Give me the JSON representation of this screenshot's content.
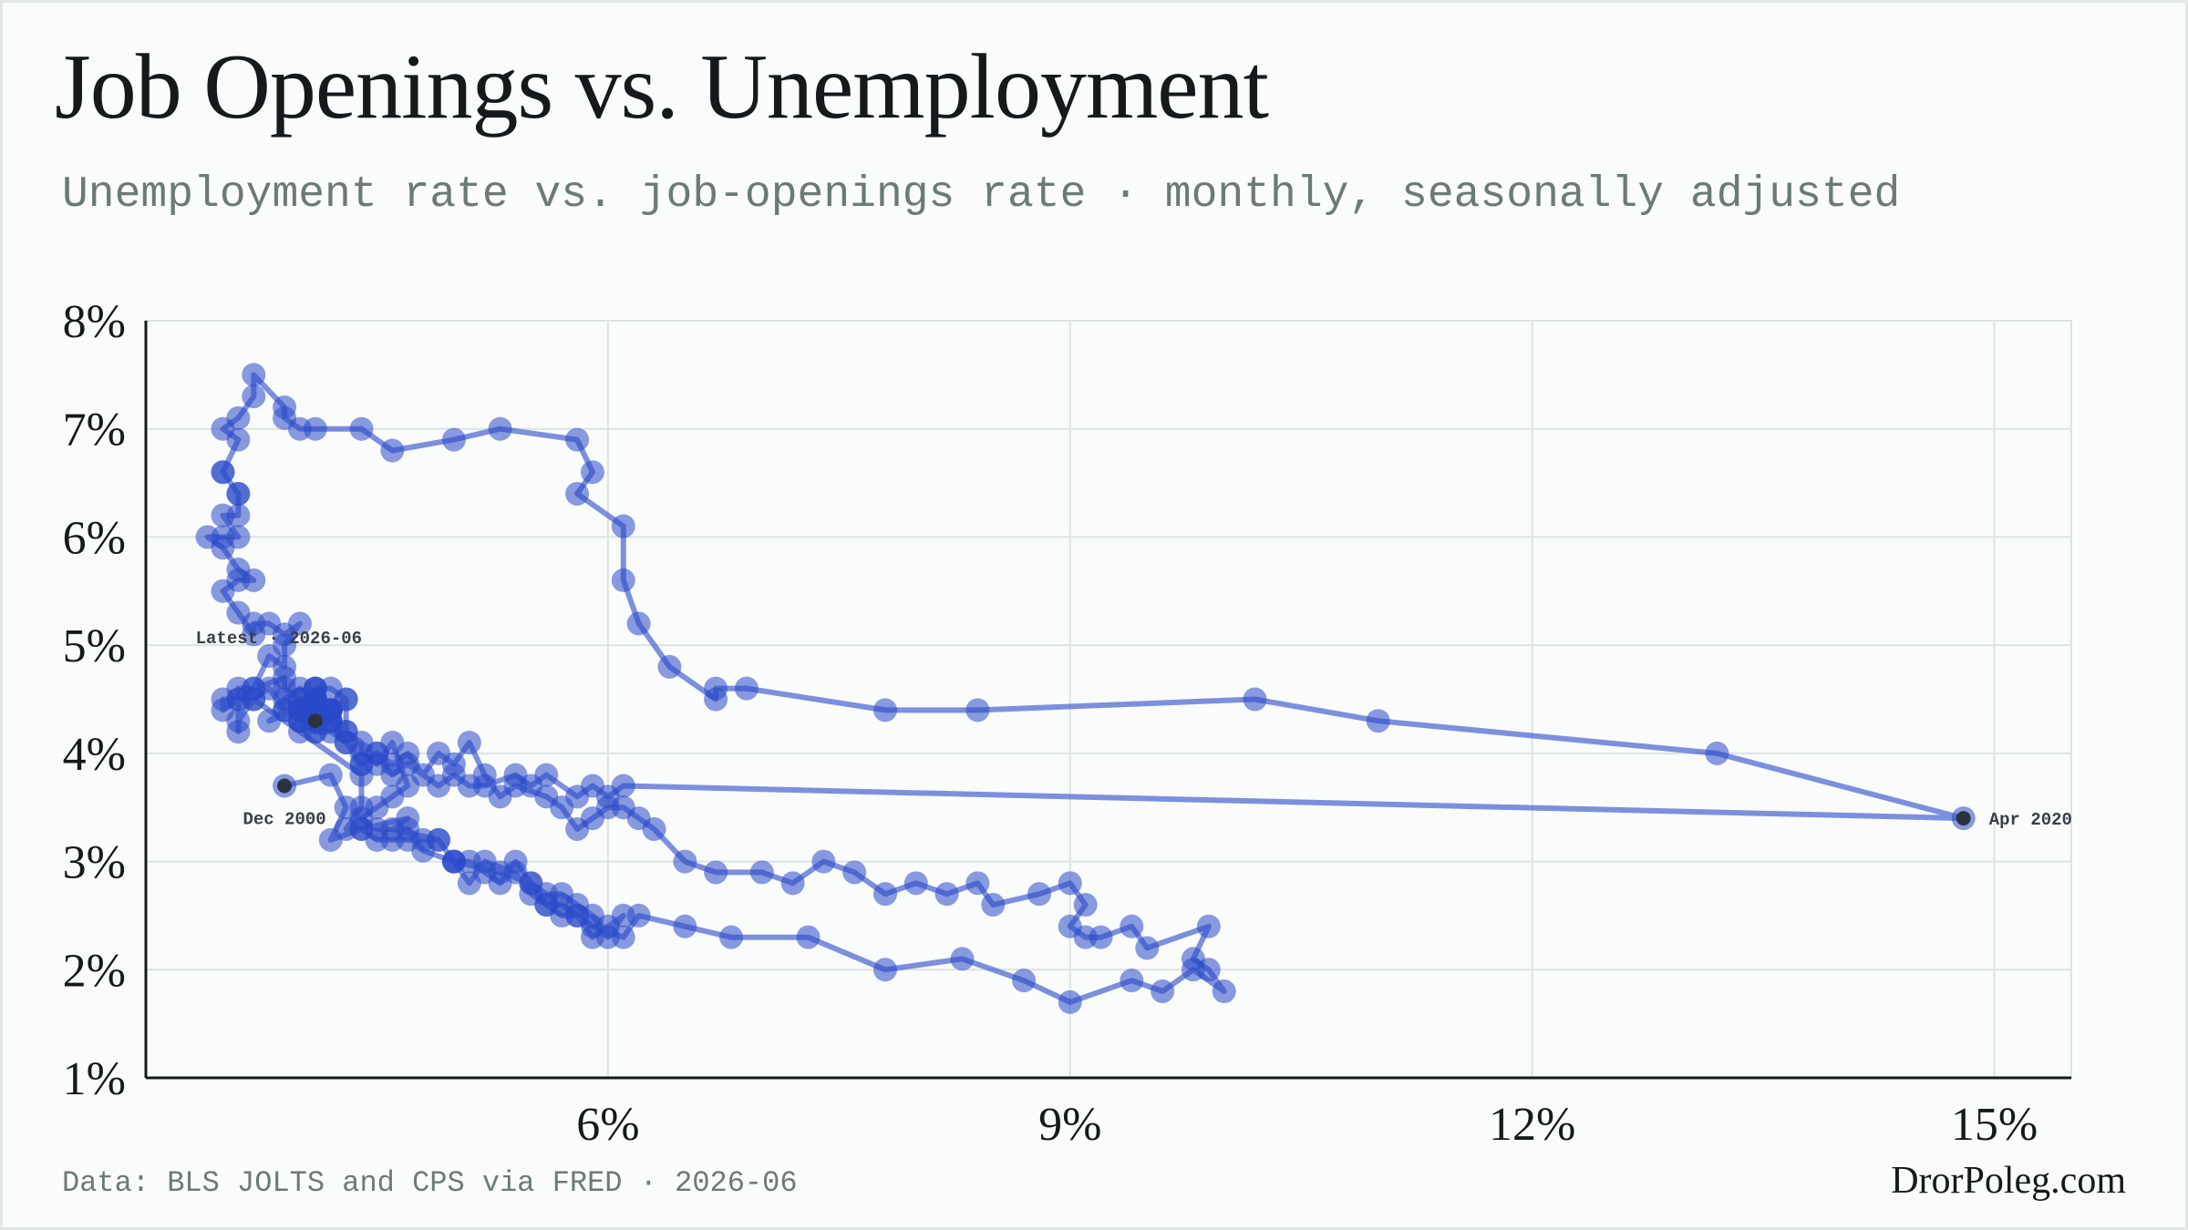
{
  "title": "Job Openings vs. Unemployment",
  "subtitle": "Unemployment rate vs. job-openings rate · monthly, seasonally adjusted",
  "footer": {
    "source": "Data: BLS JOLTS and CPS via FRED · 2026-06",
    "brand": "DrorPoleg.com"
  },
  "colors": {
    "series": "#2a48c8",
    "grid": "#dde2e2",
    "axis": "#16191c",
    "endpoint": "#2b3340"
  },
  "chart_data": {
    "type": "scatter",
    "connected": true,
    "title": "Job Openings vs. Unemployment",
    "xlabel": "",
    "ylabel": "",
    "xlim": [
      3.0,
      15.5
    ],
    "ylim": [
      1,
      8
    ],
    "x_ticks": [
      {
        "value": 6,
        "label": "6%"
      },
      {
        "value": 9,
        "label": "9%"
      },
      {
        "value": 12,
        "label": "12%"
      },
      {
        "value": 15,
        "label": "15%"
      }
    ],
    "y_ticks": [
      {
        "value": 1,
        "label": "1%"
      },
      {
        "value": 2,
        "label": "2%"
      },
      {
        "value": 3,
        "label": "3%"
      },
      {
        "value": 4,
        "label": "4%"
      },
      {
        "value": 5,
        "label": "5%"
      },
      {
        "value": 6,
        "label": "6%"
      },
      {
        "value": 7,
        "label": "7%"
      },
      {
        "value": 8,
        "label": "8%"
      }
    ],
    "grid": true,
    "series": [
      {
        "points": [
          [
            3.9,
            3.7
          ],
          [
            4.2,
            3.8
          ],
          [
            4.3,
            3.5
          ],
          [
            4.2,
            3.2
          ],
          [
            4.4,
            3.3
          ],
          [
            4.7,
            3.4
          ],
          [
            4.6,
            3.3
          ],
          [
            4.9,
            3.2
          ],
          [
            5.0,
            3.0
          ],
          [
            5.3,
            2.9
          ],
          [
            5.5,
            2.8
          ],
          [
            5.6,
            2.6
          ],
          [
            5.7,
            2.6
          ],
          [
            5.8,
            2.5
          ],
          [
            5.9,
            2.4
          ],
          [
            6.1,
            2.3
          ],
          [
            6.2,
            2.5
          ],
          [
            6.5,
            2.4
          ],
          [
            6.8,
            2.3
          ],
          [
            7.3,
            2.3
          ],
          [
            7.8,
            2.0
          ],
          [
            8.3,
            2.1
          ],
          [
            8.7,
            1.9
          ],
          [
            9.0,
            1.7
          ],
          [
            9.4,
            1.9
          ],
          [
            9.6,
            1.8
          ],
          [
            9.8,
            2.0
          ],
          [
            10.0,
            1.8
          ],
          [
            9.9,
            2.0
          ],
          [
            9.8,
            2.1
          ],
          [
            9.9,
            2.4
          ],
          [
            9.5,
            2.2
          ],
          [
            9.4,
            2.4
          ],
          [
            9.2,
            2.3
          ],
          [
            9.1,
            2.3
          ],
          [
            9.0,
            2.4
          ],
          [
            9.1,
            2.6
          ],
          [
            9.0,
            2.8
          ],
          [
            8.8,
            2.7
          ],
          [
            8.5,
            2.6
          ],
          [
            8.4,
            2.8
          ],
          [
            8.2,
            2.7
          ],
          [
            8.0,
            2.8
          ],
          [
            7.8,
            2.7
          ],
          [
            7.6,
            2.9
          ],
          [
            7.4,
            3.0
          ],
          [
            7.2,
            2.8
          ],
          [
            7.0,
            2.9
          ],
          [
            6.7,
            2.9
          ],
          [
            6.5,
            3.0
          ],
          [
            6.3,
            3.3
          ],
          [
            6.2,
            3.4
          ],
          [
            6.1,
            3.5
          ],
          [
            6.0,
            3.5
          ],
          [
            5.9,
            3.4
          ],
          [
            5.8,
            3.3
          ],
          [
            5.7,
            3.5
          ],
          [
            5.6,
            3.6
          ],
          [
            5.4,
            3.7
          ],
          [
            5.3,
            3.6
          ],
          [
            5.2,
            3.8
          ],
          [
            5.1,
            4.1
          ],
          [
            5.0,
            3.9
          ],
          [
            4.9,
            4.0
          ],
          [
            4.8,
            3.8
          ],
          [
            4.7,
            4.0
          ],
          [
            4.6,
            3.9
          ],
          [
            4.5,
            4.0
          ],
          [
            4.4,
            3.9
          ],
          [
            4.3,
            4.1
          ],
          [
            4.2,
            4.3
          ],
          [
            4.1,
            4.2
          ],
          [
            4.0,
            4.3
          ],
          [
            3.9,
            4.4
          ],
          [
            3.8,
            4.6
          ],
          [
            3.7,
            4.5
          ],
          [
            3.6,
            4.5
          ],
          [
            3.5,
            4.4
          ],
          [
            3.5,
            4.5
          ],
          [
            3.6,
            4.5
          ],
          [
            3.7,
            4.6
          ],
          [
            3.9,
            4.7
          ],
          [
            3.9,
            4.6
          ],
          [
            4.0,
            4.5
          ],
          [
            4.1,
            4.5
          ],
          [
            4.0,
            4.4
          ],
          [
            4.1,
            4.6
          ],
          [
            4.2,
            4.4
          ],
          [
            4.0,
            4.4
          ],
          [
            4.1,
            4.3
          ],
          [
            4.2,
            4.4
          ],
          [
            4.0,
            4.2
          ],
          [
            4.1,
            4.4
          ],
          [
            4.2,
            4.3
          ],
          [
            4.3,
            4.2
          ],
          [
            4.4,
            4.1
          ],
          [
            4.4,
            4.0
          ],
          [
            4.5,
            3.9
          ],
          [
            4.6,
            4.1
          ],
          [
            4.7,
            3.7
          ],
          [
            4.6,
            3.6
          ],
          [
            4.5,
            3.5
          ],
          [
            4.4,
            3.4
          ],
          [
            4.5,
            3.3
          ],
          [
            4.7,
            3.3
          ],
          [
            4.8,
            3.1
          ],
          [
            5.0,
            3.0
          ],
          [
            5.1,
            2.8
          ],
          [
            5.2,
            3.0
          ],
          [
            5.4,
            2.9
          ],
          [
            5.5,
            2.7
          ],
          [
            5.6,
            2.6
          ],
          [
            5.7,
            2.5
          ],
          [
            5.8,
            2.5
          ],
          [
            5.9,
            2.3
          ],
          [
            6.0,
            2.4
          ],
          [
            6.1,
            2.5
          ],
          [
            6.0,
            2.3
          ],
          [
            5.9,
            2.5
          ],
          [
            5.8,
            2.6
          ],
          [
            5.7,
            2.7
          ],
          [
            5.6,
            2.7
          ],
          [
            5.5,
            2.8
          ],
          [
            5.4,
            3.0
          ],
          [
            5.3,
            2.8
          ],
          [
            5.2,
            2.9
          ],
          [
            5.1,
            3.0
          ],
          [
            5.0,
            3.0
          ],
          [
            4.9,
            3.2
          ],
          [
            4.8,
            3.2
          ],
          [
            4.7,
            3.2
          ],
          [
            4.6,
            3.2
          ],
          [
            4.5,
            3.2
          ],
          [
            4.4,
            3.3
          ],
          [
            4.3,
            3.3
          ],
          [
            4.4,
            3.5
          ],
          [
            4.4,
            3.8
          ],
          [
            3.7,
            4.5
          ],
          [
            3.6,
            4.3
          ],
          [
            3.6,
            4.2
          ],
          [
            3.6,
            4.6
          ],
          [
            3.7,
            4.6
          ],
          [
            3.8,
            4.9
          ],
          [
            3.9,
            4.8
          ],
          [
            3.9,
            5.0
          ],
          [
            4.0,
            5.2
          ],
          [
            3.9,
            5.1
          ],
          [
            3.8,
            5.2
          ],
          [
            3.7,
            5.2
          ],
          [
            3.7,
            5.1
          ],
          [
            3.6,
            5.3
          ],
          [
            3.5,
            5.5
          ],
          [
            3.6,
            5.6
          ],
          [
            3.7,
            5.6
          ],
          [
            3.6,
            5.7
          ],
          [
            3.5,
            5.9
          ],
          [
            3.4,
            6.0
          ],
          [
            3.5,
            6.0
          ],
          [
            3.6,
            6.0
          ],
          [
            3.5,
            6.2
          ],
          [
            3.6,
            6.2
          ],
          [
            3.6,
            6.4
          ],
          [
            3.5,
            6.6
          ],
          [
            3.6,
            6.4
          ],
          [
            3.5,
            6.6
          ],
          [
            3.6,
            6.9
          ],
          [
            3.5,
            7.0
          ],
          [
            3.6,
            7.1
          ],
          [
            3.7,
            7.3
          ],
          [
            3.7,
            7.5
          ],
          [
            3.9,
            7.2
          ],
          [
            3.9,
            7.1
          ],
          [
            4.0,
            7.0
          ],
          [
            4.1,
            7.0
          ],
          [
            4.4,
            7.0
          ],
          [
            4.6,
            6.8
          ],
          [
            5.0,
            6.9
          ],
          [
            5.3,
            7.0
          ],
          [
            5.8,
            6.9
          ],
          [
            5.9,
            6.6
          ],
          [
            5.8,
            6.4
          ],
          [
            6.1,
            6.1
          ],
          [
            6.1,
            5.6
          ],
          [
            6.2,
            5.2
          ],
          [
            6.4,
            4.8
          ],
          [
            6.7,
            4.5
          ],
          [
            6.7,
            4.6
          ],
          [
            6.9,
            4.6
          ],
          [
            7.8,
            4.4
          ],
          [
            8.4,
            4.4
          ],
          [
            10.2,
            4.5
          ],
          [
            11.0,
            4.3
          ],
          [
            13.2,
            4.0
          ],
          [
            14.8,
            3.4
          ],
          [
            6.1,
            3.7
          ],
          [
            6.0,
            3.6
          ],
          [
            5.9,
            3.7
          ],
          [
            5.8,
            3.6
          ],
          [
            5.6,
            3.8
          ],
          [
            5.5,
            3.7
          ],
          [
            5.4,
            3.8
          ],
          [
            5.2,
            3.7
          ],
          [
            5.1,
            3.7
          ],
          [
            5.0,
            3.8
          ],
          [
            4.9,
            3.7
          ],
          [
            4.7,
            3.9
          ],
          [
            4.6,
            3.8
          ],
          [
            4.5,
            4.0
          ],
          [
            4.4,
            3.9
          ],
          [
            4.3,
            4.1
          ],
          [
            4.2,
            4.2
          ],
          [
            4.1,
            4.2
          ],
          [
            4.0,
            4.3
          ],
          [
            3.9,
            4.4
          ],
          [
            3.8,
            4.3
          ],
          [
            4.0,
            4.4
          ],
          [
            4.1,
            4.5
          ],
          [
            4.2,
            4.4
          ],
          [
            4.3,
            4.5
          ],
          [
            4.2,
            4.3
          ],
          [
            4.1,
            4.4
          ],
          [
            4.0,
            4.5
          ],
          [
            4.1,
            4.3
          ],
          [
            4.2,
            4.4
          ],
          [
            4.3,
            4.2
          ],
          [
            4.3,
            4.5
          ],
          [
            4.2,
            4.6
          ],
          [
            4.1,
            4.6
          ],
          [
            4.2,
            4.4
          ],
          [
            4.1,
            4.5
          ],
          [
            4.0,
            4.6
          ],
          [
            3.9,
            4.5
          ],
          [
            4.0,
            4.4
          ],
          [
            4.2,
            4.4
          ],
          [
            4.1,
            4.5
          ],
          [
            4.1,
            4.6
          ],
          [
            4.0,
            4.3
          ],
          [
            4.1,
            4.4
          ],
          [
            4.1,
            4.3
          ]
        ]
      }
    ],
    "annotations": [
      {
        "label": "Dec 2000",
        "x": 3.9,
        "y": 3.7,
        "anchor": "below-left"
      },
      {
        "label": "Apr 2020",
        "x": 14.8,
        "y": 3.4,
        "anchor": "right"
      },
      {
        "label": "Latest · 2026-06",
        "x": 4.1,
        "y": 4.3,
        "anchor": "above-left"
      }
    ]
  }
}
